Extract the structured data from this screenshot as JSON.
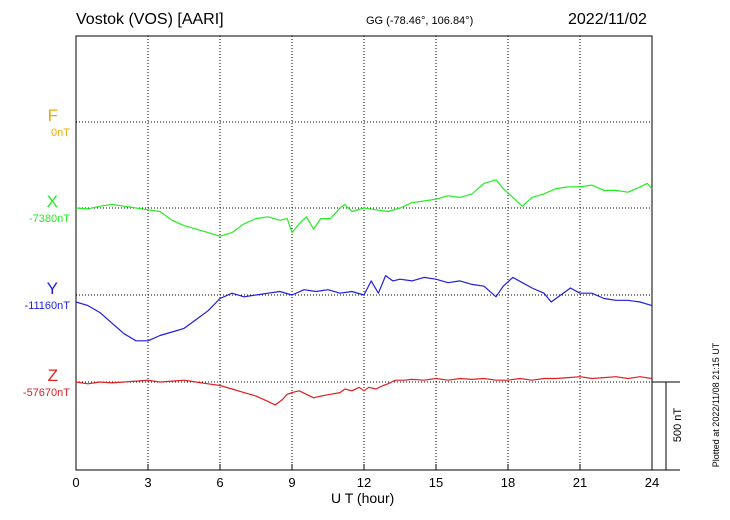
{
  "header": {
    "station": "Vostok (VOS)  [AARI]",
    "coords": "GG (-78.46°, 106.84°)",
    "date": "2022/11/02"
  },
  "footer": {
    "plotted": "Plotted at 2022/11/08 21:15 UT",
    "scale_label": "500 nT"
  },
  "chart_data": {
    "type": "line",
    "xlabel": "U T (hour)",
    "xlim": [
      0,
      24
    ],
    "xticks": [
      0,
      3,
      6,
      9,
      12,
      15,
      18,
      21,
      24
    ],
    "grid": true,
    "scale_bar_nT": 500,
    "series": [
      {
        "name": "F",
        "baseline_label": "0nT",
        "color": "#f0a800",
        "baseline": 0,
        "x": [],
        "y": []
      },
      {
        "name": "X",
        "baseline_label": "-7380nT",
        "color": "#22ee22",
        "baseline": -7380,
        "x": [
          0,
          0.5,
          1,
          1.5,
          2,
          2.5,
          3,
          3.5,
          4,
          4.5,
          5,
          5.5,
          6,
          6.5,
          7,
          7.5,
          8,
          8.5,
          8.8,
          9,
          9.3,
          9.6,
          9.9,
          10.2,
          10.6,
          11,
          11.2,
          11.5,
          12,
          12.5,
          13,
          13.5,
          14,
          14.5,
          15,
          15.5,
          16,
          16.5,
          17,
          17.5,
          17.8,
          18.2,
          18.6,
          19,
          19.5,
          20,
          20.5,
          21,
          21.5,
          22,
          22.5,
          23,
          23.5,
          23.8,
          24
        ],
        "y": [
          -7380,
          -7385,
          -7370,
          -7360,
          -7370,
          -7380,
          -7390,
          -7400,
          -7450,
          -7480,
          -7500,
          -7520,
          -7540,
          -7520,
          -7470,
          -7440,
          -7430,
          -7450,
          -7440,
          -7520,
          -7470,
          -7430,
          -7500,
          -7440,
          -7440,
          -7380,
          -7360,
          -7400,
          -7380,
          -7390,
          -7400,
          -7380,
          -7350,
          -7340,
          -7330,
          -7310,
          -7320,
          -7300,
          -7240,
          -7220,
          -7270,
          -7320,
          -7370,
          -7320,
          -7300,
          -7270,
          -7260,
          -7260,
          -7250,
          -7280,
          -7280,
          -7290,
          -7260,
          -7240,
          -7270
        ]
      },
      {
        "name": "Y",
        "baseline_label": "-11160nT",
        "color": "#1f1fdd",
        "baseline": -11160,
        "x": [
          0,
          0.5,
          1,
          1.5,
          2,
          2.5,
          3,
          3.5,
          4,
          4.5,
          5,
          5.5,
          6,
          6.5,
          7,
          7.5,
          8,
          8.5,
          9,
          9.5,
          10,
          10.5,
          11,
          11.5,
          12,
          12.3,
          12.6,
          12.9,
          13.2,
          13.5,
          14,
          14.5,
          15,
          15.5,
          16,
          16.5,
          17,
          17.5,
          17.8,
          18.2,
          18.6,
          19,
          19.5,
          19.8,
          20.2,
          20.6,
          21,
          21.5,
          22,
          22.5,
          23,
          23.5,
          24
        ],
        "y": [
          -11200,
          -11220,
          -11260,
          -11320,
          -11380,
          -11420,
          -11420,
          -11390,
          -11370,
          -11350,
          -11300,
          -11250,
          -11180,
          -11150,
          -11170,
          -11160,
          -11150,
          -11140,
          -11160,
          -11130,
          -11140,
          -11130,
          -11150,
          -11140,
          -11160,
          -11080,
          -11150,
          -11050,
          -11080,
          -11070,
          -11080,
          -11060,
          -11070,
          -11090,
          -11080,
          -11100,
          -11110,
          -11170,
          -11110,
          -11060,
          -11090,
          -11120,
          -11150,
          -11200,
          -11160,
          -11120,
          -11150,
          -11150,
          -11180,
          -11190,
          -11190,
          -11200,
          -11220
        ]
      },
      {
        "name": "Z",
        "baseline_label": "-57670nT",
        "color": "#e02020",
        "baseline": -57670,
        "x": [
          0,
          0.5,
          1,
          1.5,
          2,
          2.5,
          3,
          3.5,
          4,
          4.5,
          5,
          5.5,
          6,
          6.5,
          7,
          7.5,
          8,
          8.3,
          8.6,
          8.8,
          9,
          9.3,
          9.6,
          9.9,
          10.2,
          10.6,
          11,
          11.2,
          11.5,
          11.8,
          12,
          12.2,
          12.5,
          12.8,
          13,
          13.3,
          13.7,
          14,
          14.5,
          15,
          15.5,
          16,
          16.5,
          17,
          17.5,
          18,
          18.5,
          19,
          19.5,
          20,
          20.5,
          21,
          21.5,
          22,
          22.5,
          23,
          23.5,
          24
        ],
        "y": [
          -57670,
          -57680,
          -57670,
          -57675,
          -57670,
          -57665,
          -57660,
          -57670,
          -57665,
          -57660,
          -57670,
          -57680,
          -57690,
          -57710,
          -57730,
          -57750,
          -57780,
          -57800,
          -57770,
          -57740,
          -57730,
          -57720,
          -57740,
          -57760,
          -57750,
          -57740,
          -57730,
          -57710,
          -57720,
          -57700,
          -57720,
          -57700,
          -57710,
          -57690,
          -57680,
          -57660,
          -57660,
          -57655,
          -57660,
          -57650,
          -57660,
          -57650,
          -57655,
          -57650,
          -57660,
          -57660,
          -57650,
          -57660,
          -57650,
          -57650,
          -57645,
          -57640,
          -57650,
          -57645,
          -57640,
          -57650,
          -57640,
          -57650
        ]
      }
    ]
  }
}
